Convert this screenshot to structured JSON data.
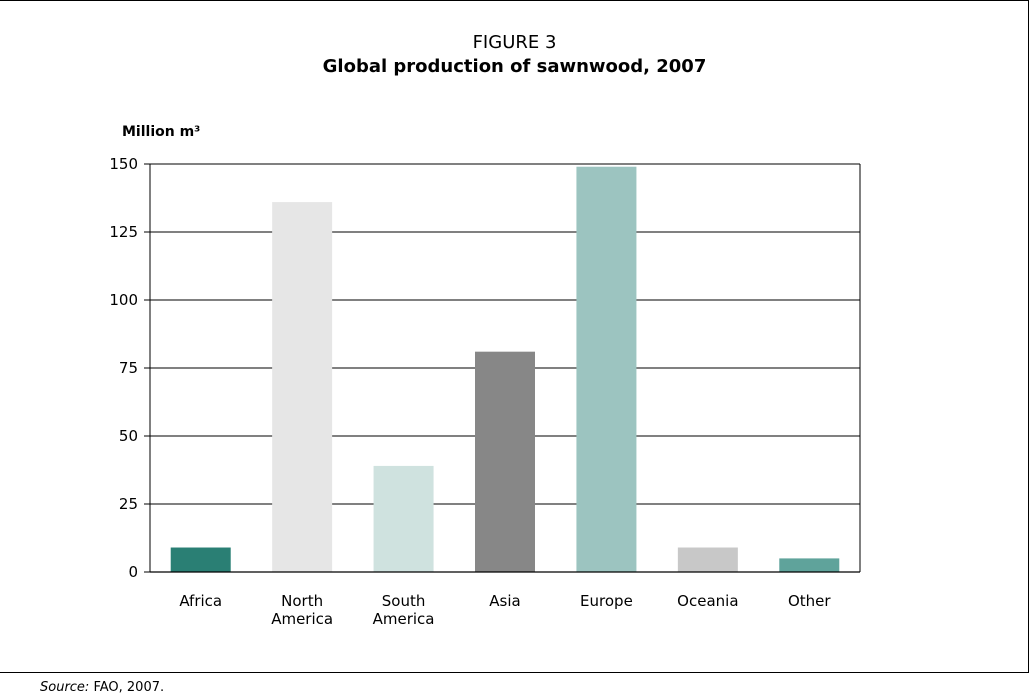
{
  "figure": {
    "label": "FIGURE 3",
    "title": "Global production of sawnwood, 2007"
  },
  "source": {
    "lead": "Source:",
    "text": "FAO, 2007."
  },
  "chart_data": {
    "type": "bar",
    "title": "Global production of sawnwood, 2007",
    "ylabel": "Million m³",
    "xlabel": "",
    "ylim": [
      0,
      150
    ],
    "yticks": [
      0,
      25,
      50,
      75,
      100,
      125,
      150
    ],
    "grid": true,
    "categories": [
      {
        "lines": [
          "Africa"
        ]
      },
      {
        "lines": [
          "North",
          "America"
        ]
      },
      {
        "lines": [
          "South",
          "America"
        ]
      },
      {
        "lines": [
          "Asia"
        ]
      },
      {
        "lines": [
          "Europe"
        ]
      },
      {
        "lines": [
          "Oceania"
        ]
      },
      {
        "lines": [
          "Other"
        ]
      }
    ],
    "values": [
      9,
      136,
      39,
      81,
      149,
      9,
      5
    ],
    "colors": [
      "#2a7f74",
      "#e6e6e6",
      "#cfe2df",
      "#878787",
      "#9cc4c0",
      "#c8c8c8",
      "#5fa39b"
    ]
  }
}
